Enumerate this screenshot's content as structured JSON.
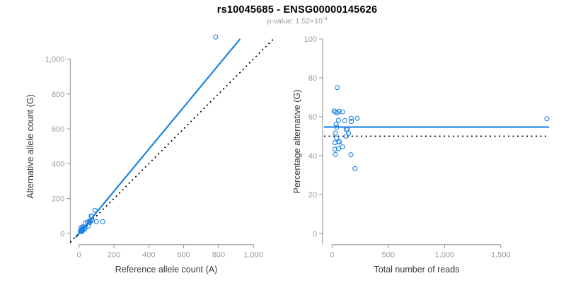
{
  "header": {
    "title": "rs10045685 - ENSG00000145626",
    "pvalue_prefix": "p-value: 1.52×10",
    "pvalue_exponent": "-9"
  },
  "colors": {
    "accent_blue": "#1e82e6",
    "dotted_black": "#000000",
    "axis_gray": "#8e8e8e",
    "tick_text_gray": "#9b9b9b",
    "axis_title_dark": "#383838",
    "subtitle_gray": "#979797"
  },
  "chart_data": [
    {
      "type": "scatter",
      "name": "allele-counts-panel",
      "xlabel": "Reference allele count (A)",
      "ylabel": "Alternative allele count (G)",
      "xlim": [
        0,
        1000
      ],
      "ylim": [
        0,
        1150
      ],
      "grid": false,
      "xticks": [
        0,
        200,
        400,
        600,
        800,
        1000
      ],
      "xtick_labels": [
        "0",
        "200",
        "400",
        "600",
        "800",
        "1,000"
      ],
      "yticks": [
        0,
        200,
        400,
        600,
        800,
        1000
      ],
      "ytick_labels": [
        "0",
        "200",
        "400",
        "600",
        "800",
        "1,000"
      ],
      "points": [
        [
          11.5,
          34.5
        ],
        [
          6.7,
          11.3
        ],
        [
          11.3,
          18.8
        ],
        [
          17.1,
          27.9
        ],
        [
          23.4,
          39.6
        ],
        [
          35.3,
          58.8
        ],
        [
          23.8,
          33.2
        ],
        [
          47.5,
          65.5
        ],
        [
          69.4,
          100.6
        ],
        [
          72.9,
          99.1
        ],
        [
          91.4,
          132.6
        ],
        [
          15.8,
          20.2
        ],
        [
          19.1,
          22.9
        ],
        [
          14.5,
          15.5
        ],
        [
          58.7,
          67.3
        ],
        [
          63.1,
          72.9
        ],
        [
          71.3,
          75.7
        ],
        [
          63.0,
          63.0
        ],
        [
          21.4,
          20.6
        ],
        [
          13.3,
          11.7
        ],
        [
          31.6,
          28.4
        ],
        [
          34.5,
          30.6
        ],
        [
          14.2,
          10.8
        ],
        [
          32.2,
          24.8
        ],
        [
          52.2,
          41.8
        ],
        [
          17.8,
          12.2
        ],
        [
          100.0,
          68.0
        ],
        [
          136.1,
          67.9
        ],
        [
          783.1,
          1126.9
        ]
      ],
      "lines": [
        {
          "name": "fit-line",
          "kind": "abline",
          "slope": 1.2075,
          "intercept": 0,
          "color": "#1e82e6",
          "style": "solid"
        },
        {
          "name": "identity-line",
          "kind": "abline",
          "slope": 1,
          "intercept": 0,
          "color": "#000000",
          "style": "dotted"
        }
      ]
    },
    {
      "type": "scatter",
      "name": "percentage-panel",
      "xlabel": "Total number of reads",
      "ylabel": "Percentage alternative (G)",
      "xlim": [
        0,
        1900
      ],
      "ylim": [
        0,
        100
      ],
      "grid": false,
      "xticks": [
        0,
        500,
        1000,
        1500
      ],
      "xtick_labels": [
        "0",
        "500",
        "1,000",
        "1,500"
      ],
      "yticks": [
        0,
        20,
        40,
        60,
        80,
        100
      ],
      "ytick_labels": [
        "0",
        "20",
        "40",
        "60",
        "80",
        "100"
      ],
      "points": [
        [
          46,
          75
        ],
        [
          18,
          63
        ],
        [
          30,
          62.5
        ],
        [
          45,
          62
        ],
        [
          63,
          62.8
        ],
        [
          94,
          62.5
        ],
        [
          57,
          58.2
        ],
        [
          113,
          58
        ],
        [
          170,
          59.2
        ],
        [
          172,
          57.6
        ],
        [
          224,
          59.2
        ],
        [
          36,
          56.1
        ],
        [
          42,
          54.6
        ],
        [
          30,
          51.6
        ],
        [
          126,
          53.4
        ],
        [
          136,
          53.6
        ],
        [
          147,
          51.5
        ],
        [
          126,
          50
        ],
        [
          42,
          49
        ],
        [
          25,
          46.7
        ],
        [
          60,
          47.3
        ],
        [
          65,
          47
        ],
        [
          25,
          43.3
        ],
        [
          57,
          43.6
        ],
        [
          94,
          44.5
        ],
        [
          30,
          40.6
        ],
        [
          168,
          40.5
        ],
        [
          204,
          33.3
        ],
        [
          1910,
          59
        ]
      ],
      "lines": [
        {
          "name": "mean-line",
          "kind": "hline",
          "y": 54.7,
          "color": "#1e82e6",
          "style": "solid"
        },
        {
          "name": "expected-line",
          "kind": "hline",
          "y": 50,
          "color": "#000000",
          "style": "dotted"
        }
      ]
    }
  ]
}
